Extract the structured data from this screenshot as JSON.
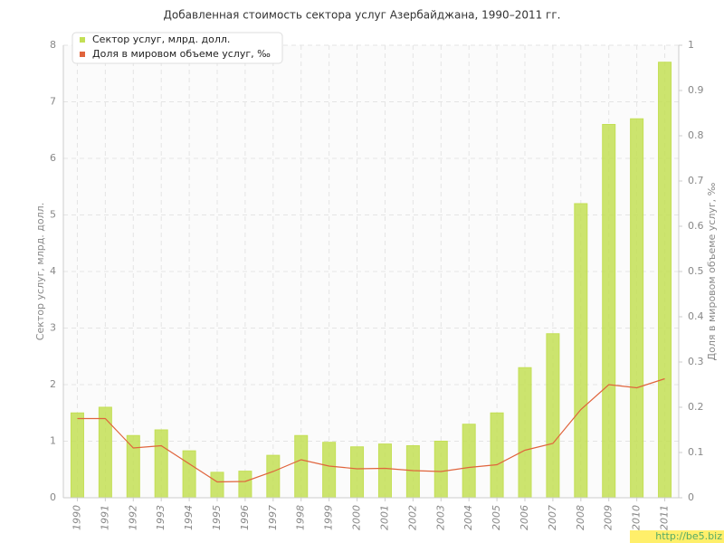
{
  "chart_data": {
    "type": "bar",
    "title": "Добавленная стоимость сектора услуг Азербайджана, 1990–2011 гг.",
    "y_label": "Сектор услуг, млрд. долл.",
    "y2_label": "Доля в мировом объеме услуг, ‰",
    "categories": [
      "1990",
      "1991",
      "1992",
      "1993",
      "1994",
      "1995",
      "1996",
      "1997",
      "1998",
      "1999",
      "2000",
      "2001",
      "2002",
      "2003",
      "2004",
      "2005",
      "2006",
      "2007",
      "2008",
      "2009",
      "2010",
      "2011"
    ],
    "series": [
      {
        "name": "Сектор услуг, млрд. долл.",
        "type": "bar",
        "color": "#c3df55",
        "values": [
          1.5,
          1.6,
          1.1,
          1.2,
          0.83,
          0.45,
          0.47,
          0.75,
          1.1,
          0.98,
          0.9,
          0.95,
          0.92,
          1.0,
          1.3,
          1.5,
          2.3,
          2.9,
          5.2,
          6.6,
          6.7,
          7.7
        ]
      },
      {
        "name": "Доля в мировом объеме услуг, ‰",
        "type": "line",
        "axis": "y2",
        "color": "#e0643c",
        "values": [
          0.175,
          0.175,
          0.11,
          0.115,
          0.075,
          0.035,
          0.036,
          0.058,
          0.084,
          0.07,
          0.064,
          0.065,
          0.06,
          0.058,
          0.067,
          0.073,
          0.105,
          0.12,
          0.195,
          0.25,
          0.243,
          0.263
        ]
      }
    ],
    "ylim": [
      0,
      8
    ],
    "yticks": [
      0,
      1,
      2,
      3,
      4,
      5,
      6,
      7,
      8
    ],
    "y2lim": [
      0,
      1
    ],
    "y2ticks": [
      0,
      0.1,
      0.2,
      0.3,
      0.4,
      0.5,
      0.6,
      0.7,
      0.8,
      0.9,
      1
    ],
    "grid": true,
    "legend": "top-left"
  },
  "watermark": "http://be5.biz"
}
